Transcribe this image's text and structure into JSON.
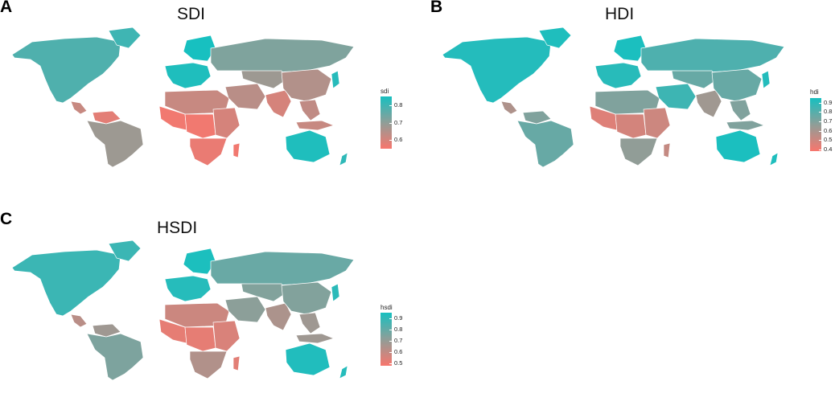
{
  "colors": {
    "low": "#f8766d",
    "mid": "#8f9e98",
    "high": "#17c0c0"
  },
  "panels": [
    {
      "letter": "A",
      "title": "SDI",
      "legend_title": "sdi",
      "legend_ticks": [
        "0.8",
        "0.7",
        "0.6"
      ],
      "legend_range": [
        0.55,
        0.85
      ],
      "tick_values": [
        0.8,
        0.7,
        0.6
      ],
      "regions": {
        "north_america": 0.78,
        "greenland": 0.8,
        "caribbean": 0.62,
        "south_america": 0.68,
        "venezuela": 0.58,
        "europe_west": 0.84,
        "scandinavia": 0.85,
        "russia": 0.72,
        "north_africa": 0.62,
        "west_africa": 0.56,
        "central_africa": 0.56,
        "east_africa": 0.6,
        "southern_africa": 0.57,
        "madagascar": 0.56,
        "middle_east": 0.64,
        "central_asia": 0.68,
        "south_asia": 0.6,
        "china": 0.65,
        "japan": 0.83,
        "southeast_asia": 0.63,
        "indonesia": 0.62,
        "australia": 0.84,
        "new_zealand": 0.82
      }
    },
    {
      "letter": "B",
      "title": "HDI",
      "legend_title": "hdi",
      "legend_ticks": [
        "0.9",
        "0.8",
        "0.7",
        "0.6",
        "0.5",
        "0.4"
      ],
      "legend_range": [
        0.38,
        0.95
      ],
      "tick_values": [
        0.9,
        0.8,
        0.7,
        0.6,
        0.5,
        0.4
      ],
      "regions": {
        "north_america": 0.92,
        "greenland": 0.93,
        "caribbean": 0.58,
        "south_america": 0.76,
        "venezuela": 0.7,
        "europe_west": 0.91,
        "scandinavia": 0.94,
        "russia": 0.82,
        "north_africa": 0.7,
        "west_africa": 0.45,
        "central_africa": 0.48,
        "east_africa": 0.5,
        "southern_africa": 0.66,
        "madagascar": 0.52,
        "middle_east": 0.86,
        "central_asia": 0.76,
        "south_asia": 0.62,
        "china": 0.76,
        "japan": 0.92,
        "southeast_asia": 0.7,
        "indonesia": 0.7,
        "australia": 0.94,
        "new_zealand": 0.93
      }
    },
    {
      "letter": "C",
      "title": "HSDI",
      "legend_title": "hsdi",
      "legend_ticks": [
        "0.9",
        "0.8",
        "0.7",
        "0.6",
        "0.5"
      ],
      "legend_range": [
        0.48,
        0.95
      ],
      "tick_values": [
        0.9,
        0.8,
        0.7,
        0.6,
        0.5
      ],
      "regions": {
        "north_america": 0.88,
        "greenland": 0.88,
        "caribbean": 0.62,
        "south_america": 0.75,
        "venezuela": 0.68,
        "europe_west": 0.92,
        "scandinavia": 0.94,
        "russia": 0.79,
        "north_africa": 0.58,
        "west_africa": 0.52,
        "central_africa": 0.52,
        "east_africa": 0.55,
        "southern_africa": 0.64,
        "madagascar": 0.53,
        "middle_east": 0.72,
        "central_asia": 0.74,
        "south_asia": 0.65,
        "china": 0.74,
        "japan": 0.91,
        "southeast_asia": 0.68,
        "indonesia": 0.68,
        "australia": 0.93,
        "new_zealand": 0.92
      }
    }
  ]
}
